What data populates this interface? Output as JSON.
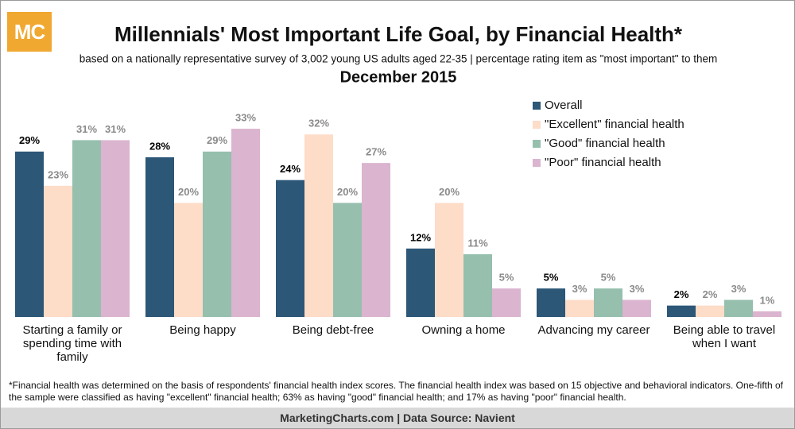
{
  "logo": "MC",
  "chart_data": {
    "type": "bar",
    "title": "Millennials' Most Important Life Goal, by Financial Health*",
    "subtitle": "based on a nationally representative survey of 3,002 young US adults aged 22-35 | percentage rating item as \"most important\" to them",
    "date": "December 2015",
    "categories": [
      "Starting a family or spending time with family",
      "Being happy",
      "Being debt-free",
      "Owning a home",
      "Advancing my career",
      "Being able to travel when I want"
    ],
    "series": [
      {
        "name": "Overall",
        "color": "#2c5777",
        "values": [
          29,
          28,
          24,
          12,
          5,
          2
        ],
        "value_labels": [
          "29%",
          "28%",
          "24%",
          "12%",
          "5%",
          "2%"
        ],
        "label_color": "#000000"
      },
      {
        "name": "\"Excellent\" financial health",
        "color": "#fddcc8",
        "values": [
          23,
          20,
          32,
          20,
          3,
          2
        ],
        "value_labels": [
          "23%",
          "20%",
          "32%",
          "20%",
          "3%",
          "2%"
        ],
        "label_color": "#8a8a8a"
      },
      {
        "name": "\"Good\" financial health",
        "color": "#96bfae",
        "values": [
          31,
          29,
          20,
          11,
          5,
          3
        ],
        "value_labels": [
          "31%",
          "29%",
          "20%",
          "11%",
          "5%",
          "3%"
        ],
        "label_color": "#8a8a8a"
      },
      {
        "name": "\"Poor\" financial health",
        "color": "#dbb4cf",
        "values": [
          31,
          33,
          27,
          5,
          3,
          1
        ],
        "value_labels": [
          "31%",
          "33%",
          "27%",
          "5%",
          "3%",
          "1%"
        ],
        "label_color": "#8a8a8a"
      }
    ],
    "legend": "top-right"
  },
  "footnote": "*Financial health was determined on the basis of respondents' financial health index scores. The financial health index was based on 15 objective and behavioral indicators. One-fifth of the sample were classified as having \"excellent\" financial health; 63% as having \"good\" financial health; and 17% as having \"poor\" financial health.",
  "source": "MarketingCharts.com | Data Source: Navient"
}
